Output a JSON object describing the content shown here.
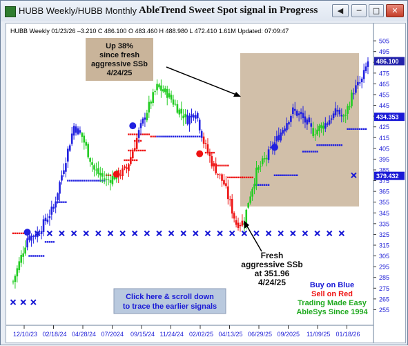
{
  "window": {
    "tabs": [
      "HUBB Weekly/HUBB Monthly"
    ],
    "title": "AbleTrend Sweet Spot signal in Progress",
    "buttons": {
      "back": "back-arrow-icon",
      "minimize": "minimize-icon",
      "maximize": "maximize-icon",
      "close": "close-icon"
    }
  },
  "chart_data": {
    "type": "candlestick",
    "symbol": "HUBB",
    "header": "HUBB  Weekly 01/23/26  –3.210  C 486.100 O 483.460 H 488.980 L 472.410 1.61M Updated: 07:09:47",
    "ylim": [
      245,
      507
    ],
    "y_ticks": [
      255,
      265,
      275,
      285,
      295,
      305,
      315,
      325,
      335,
      345,
      355,
      365,
      375,
      385,
      395,
      405,
      415,
      425,
      435,
      445,
      455,
      465,
      475,
      485,
      495,
      505
    ],
    "x_tick_labels": [
      "12/10/23",
      "02/18/24",
      "04/28/24",
      "07/2024",
      "09/15/24",
      "11/24/24",
      "02/02/25",
      "04/13/25",
      "06/29/25",
      "09/2025",
      "11/09/25",
      "01/18/26"
    ],
    "price_tags": [
      {
        "value": 486.1,
        "label": "486.100",
        "style": "last"
      },
      {
        "value": 434.353,
        "label": "434.353",
        "style": "stop"
      },
      {
        "value": 379.432,
        "label": "379.432",
        "style": "stop"
      }
    ],
    "colors": {
      "blue": "#2020e0",
      "green": "#22cc22",
      "red": "#ee1111",
      "cross": "#1a1ad6",
      "highlight": "#c9b49a",
      "callout": "#c9b49a",
      "button": "#b9c9de"
    },
    "annotations": {
      "up_callout": [
        "Up 38%",
        "since fresh",
        "aggressive SSb",
        "4/24/25"
      ],
      "fresh_label": [
        "Fresh",
        "aggressive SSb",
        "at 351.96",
        "4/24/25"
      ],
      "scroll_button": [
        "Click here & scroll down",
        "to trace the earlier signals"
      ],
      "legend": [
        {
          "text": "Buy on Blue",
          "color": "#1a1ad6"
        },
        {
          "text": "Sell on Red",
          "color": "#ee1111"
        },
        {
          "text": "Trading Made Easy",
          "color": "#22aa22"
        },
        {
          "text": "AbleSys Since 1994",
          "color": "#22aa22"
        }
      ]
    },
    "waypoints": [
      {
        "i": 0,
        "v": 281,
        "c": "g"
      },
      {
        "i": 7,
        "v": 322,
        "c": "b"
      },
      {
        "i": 12,
        "v": 326,
        "c": "b"
      },
      {
        "i": 20,
        "v": 350,
        "c": "b"
      },
      {
        "i": 30,
        "v": 426,
        "c": "b"
      },
      {
        "i": 34,
        "v": 416,
        "c": "g"
      },
      {
        "i": 40,
        "v": 385,
        "c": "g"
      },
      {
        "i": 46,
        "v": 375,
        "c": "g"
      },
      {
        "i": 52,
        "v": 381,
        "c": "r"
      },
      {
        "i": 56,
        "v": 386,
        "c": "r"
      },
      {
        "i": 62,
        "v": 420,
        "c": "b"
      },
      {
        "i": 66,
        "v": 440,
        "c": "g"
      },
      {
        "i": 71,
        "v": 462,
        "c": "g"
      },
      {
        "i": 76,
        "v": 456,
        "c": "g"
      },
      {
        "i": 82,
        "v": 440,
        "c": "g"
      },
      {
        "i": 86,
        "v": 432,
        "c": "b"
      },
      {
        "i": 90,
        "v": 440,
        "c": "b"
      },
      {
        "i": 94,
        "v": 411,
        "c": "r"
      },
      {
        "i": 98,
        "v": 392,
        "c": "r"
      },
      {
        "i": 104,
        "v": 372,
        "c": "r"
      },
      {
        "i": 110,
        "v": 335,
        "c": "r"
      },
      {
        "i": 114,
        "v": 337,
        "c": "g"
      },
      {
        "i": 116,
        "v": 356,
        "c": "g"
      },
      {
        "i": 120,
        "v": 383,
        "c": "g"
      },
      {
        "i": 126,
        "v": 400,
        "c": "b"
      },
      {
        "i": 132,
        "v": 420,
        "c": "b"
      },
      {
        "i": 138,
        "v": 440,
        "c": "b"
      },
      {
        "i": 142,
        "v": 435,
        "c": "b"
      },
      {
        "i": 148,
        "v": 420,
        "c": "g"
      },
      {
        "i": 154,
        "v": 428,
        "c": "b"
      },
      {
        "i": 160,
        "v": 440,
        "c": "b"
      },
      {
        "i": 163,
        "v": 432,
        "c": "g"
      },
      {
        "i": 168,
        "v": 459,
        "c": "b"
      },
      {
        "i": 172,
        "v": 468,
        "c": "b"
      },
      {
        "i": 175,
        "v": 486,
        "c": "b"
      }
    ],
    "stop_dots": [
      {
        "i0": 0,
        "i1": 6,
        "v": 326,
        "c": "r"
      },
      {
        "i0": 8,
        "i1": 15,
        "v": 305,
        "c": "b"
      },
      {
        "i0": 16,
        "i1": 20,
        "v": 318,
        "c": "b"
      },
      {
        "i0": 21,
        "i1": 26,
        "v": 355,
        "c": "b"
      },
      {
        "i0": 27,
        "i1": 45,
        "v": 375,
        "c": "b"
      },
      {
        "i0": 46,
        "i1": 48,
        "v": 380,
        "c": "r"
      },
      {
        "i0": 55,
        "i1": 61,
        "v": 394,
        "c": "r"
      },
      {
        "i0": 57,
        "i1": 65,
        "v": 403,
        "c": "r"
      },
      {
        "i0": 60,
        "i1": 63,
        "v": 412,
        "c": "r"
      },
      {
        "i0": 70,
        "i1": 92,
        "v": 416,
        "c": "b"
      },
      {
        "i0": 57,
        "i1": 67,
        "v": 418,
        "c": "r"
      },
      {
        "i0": 68,
        "i1": 70,
        "v": 416,
        "c": "r"
      },
      {
        "i0": 95,
        "i1": 99,
        "v": 401,
        "c": "r"
      },
      {
        "i0": 98,
        "i1": 106,
        "v": 389,
        "c": "r"
      },
      {
        "i0": 106,
        "i1": 113,
        "v": 378,
        "c": "r"
      },
      {
        "i0": 113,
        "i1": 118,
        "v": 378,
        "c": "r"
      },
      {
        "i0": 120,
        "i1": 126,
        "v": 371,
        "c": "b"
      },
      {
        "i0": 129,
        "i1": 140,
        "v": 380,
        "c": "b"
      },
      {
        "i0": 143,
        "i1": 150,
        "v": 402,
        "c": "b"
      },
      {
        "i0": 150,
        "i1": 162,
        "v": 408,
        "c": "b"
      },
      {
        "i0": 165,
        "i1": 174,
        "v": 423,
        "c": "b"
      }
    ],
    "signal_dots": [
      {
        "i": 7,
        "v": 327,
        "c": "b"
      },
      {
        "i": 59,
        "v": 426,
        "c": "b"
      },
      {
        "i": 51,
        "v": 381,
        "c": "r"
      },
      {
        "i": 92,
        "v": 400,
        "c": "r"
      },
      {
        "i": 129,
        "v": 406,
        "c": "b"
      }
    ],
    "crosses": [
      {
        "i": 0,
        "v": 262
      },
      {
        "i": 5,
        "v": 262
      },
      {
        "i": 10,
        "v": 262
      },
      {
        "i": 12,
        "v": 326
      },
      {
        "i": 18,
        "v": 326
      },
      {
        "i": 24,
        "v": 326
      },
      {
        "i": 30,
        "v": 326
      },
      {
        "i": 36,
        "v": 326
      },
      {
        "i": 42,
        "v": 326
      },
      {
        "i": 48,
        "v": 326
      },
      {
        "i": 54,
        "v": 326
      },
      {
        "i": 60,
        "v": 326
      },
      {
        "i": 66,
        "v": 326
      },
      {
        "i": 72,
        "v": 326
      },
      {
        "i": 78,
        "v": 326
      },
      {
        "i": 84,
        "v": 326
      },
      {
        "i": 90,
        "v": 326
      },
      {
        "i": 96,
        "v": 326
      },
      {
        "i": 102,
        "v": 326
      },
      {
        "i": 108,
        "v": 326
      },
      {
        "i": 114,
        "v": 326
      },
      {
        "i": 120,
        "v": 326
      },
      {
        "i": 126,
        "v": 326
      },
      {
        "i": 132,
        "v": 326
      },
      {
        "i": 138,
        "v": 326
      },
      {
        "i": 144,
        "v": 326
      },
      {
        "i": 150,
        "v": 326
      },
      {
        "i": 156,
        "v": 326
      },
      {
        "i": 162,
        "v": 326
      },
      {
        "i": 168,
        "v": 380
      }
    ],
    "bars": 176
  }
}
